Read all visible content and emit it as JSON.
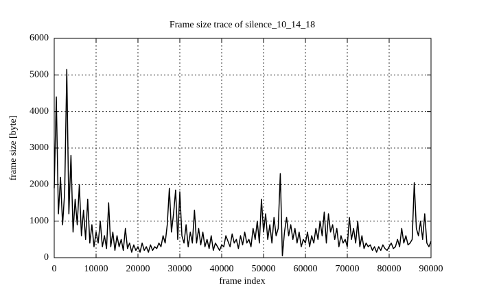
{
  "chart_data": {
    "type": "line",
    "title": "Frame size trace of silence_10_14_18",
    "xlabel": "frame index",
    "ylabel": "frame size [byte]",
    "color": "#000000",
    "grid": true,
    "xlim": [
      0,
      90000
    ],
    "ylim": [
      0,
      6000
    ],
    "xticks": [
      0,
      10000,
      20000,
      30000,
      40000,
      50000,
      60000,
      70000,
      80000,
      90000
    ],
    "yticks": [
      0,
      1000,
      2000,
      3000,
      4000,
      5000,
      6000
    ],
    "x": [
      0,
      500,
      1000,
      1500,
      2000,
      2500,
      3000,
      3500,
      4000,
      4500,
      5000,
      5500,
      6000,
      6500,
      7000,
      7500,
      8000,
      8500,
      9000,
      9500,
      10000,
      10500,
      11000,
      11500,
      12000,
      12500,
      13000,
      13500,
      14000,
      14500,
      15000,
      15500,
      16000,
      16500,
      17000,
      17500,
      18000,
      18500,
      19000,
      19500,
      20000,
      20500,
      21000,
      21500,
      22000,
      22500,
      23000,
      23500,
      24000,
      24500,
      25000,
      25500,
      26000,
      26500,
      27000,
      27500,
      28000,
      28500,
      29000,
      29500,
      30000,
      30500,
      31000,
      31500,
      32000,
      32500,
      33000,
      33500,
      34000,
      34500,
      35000,
      35500,
      36000,
      36500,
      37000,
      37500,
      38000,
      38500,
      39000,
      39500,
      40000,
      40500,
      41000,
      41500,
      42000,
      42500,
      43000,
      43500,
      44000,
      44500,
      45000,
      45500,
      46000,
      46500,
      47000,
      47500,
      48000,
      48500,
      49000,
      49500,
      50000,
      50500,
      51000,
      51500,
      52000,
      52500,
      53000,
      53500,
      54000,
      54500,
      55000,
      55500,
      56000,
      56500,
      57000,
      57500,
      58000,
      58500,
      59000,
      59500,
      60000,
      60500,
      61000,
      61500,
      62000,
      62500,
      63000,
      63500,
      64000,
      64500,
      65000,
      65500,
      66000,
      66500,
      67000,
      67500,
      68000,
      68500,
      69000,
      69500,
      70000,
      70500,
      71000,
      71500,
      72000,
      72500,
      73000,
      73500,
      74000,
      74500,
      75000,
      75500,
      76000,
      76500,
      77000,
      77500,
      78000,
      78500,
      79000,
      79500,
      80000,
      80500,
      81000,
      81500,
      82000,
      82500,
      83000,
      83500,
      84000,
      84500,
      85000,
      85500,
      86000,
      86500,
      87000,
      87500,
      88000,
      88500,
      89000,
      89500,
      90000
    ],
    "values": [
      1900,
      4400,
      1200,
      2200,
      900,
      1800,
      5150,
      1200,
      2800,
      700,
      1600,
      900,
      2000,
      600,
      1300,
      500,
      1600,
      400,
      900,
      300,
      700,
      400,
      1000,
      300,
      600,
      250,
      1500,
      300,
      700,
      200,
      600,
      300,
      500,
      200,
      800,
      250,
      400,
      150,
      350,
      200,
      300,
      150,
      400,
      200,
      300,
      150,
      350,
      200,
      300,
      250,
      400,
      300,
      600,
      400,
      900,
      1900,
      700,
      1200,
      1850,
      500,
      1800,
      600,
      400,
      900,
      300,
      700,
      400,
      1300,
      400,
      800,
      350,
      700,
      300,
      500,
      250,
      600,
      200,
      400,
      300,
      200,
      350,
      300,
      600,
      450,
      300,
      650,
      400,
      500,
      250,
      600,
      350,
      700,
      400,
      500,
      300,
      800,
      500,
      1000,
      400,
      1600,
      700,
      1200,
      500,
      900,
      400,
      1100,
      600,
      800,
      2300,
      50,
      700,
      1100,
      600,
      900,
      500,
      800,
      400,
      700,
      300,
      500,
      400,
      700,
      300,
      600,
      400,
      800,
      500,
      1000,
      600,
      1250,
      400,
      1200,
      700,
      900,
      500,
      800,
      300,
      600,
      400,
      500,
      300,
      1100,
      500,
      800,
      400,
      1000,
      300,
      600,
      250,
      400,
      300,
      350,
      200,
      300,
      150,
      300,
      200,
      350,
      250,
      200,
      300,
      400,
      250,
      300,
      500,
      300,
      800,
      400,
      600,
      350,
      400,
      500,
      2050,
      800,
      600,
      1000,
      500,
      1200,
      400,
      300,
      450
    ]
  }
}
